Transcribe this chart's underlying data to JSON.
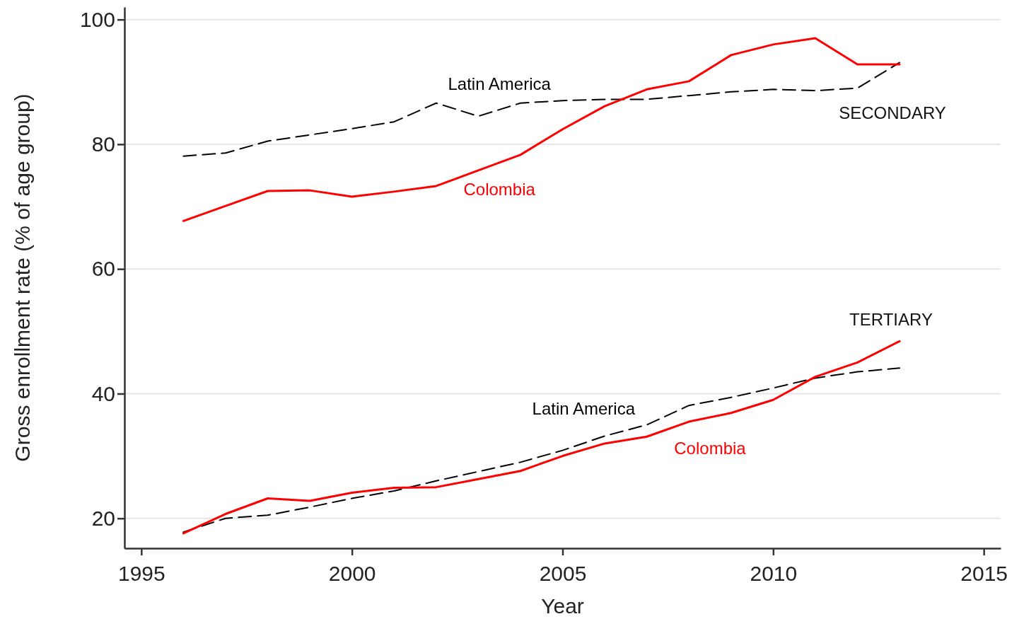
{
  "chart_data": {
    "type": "line",
    "xlabel": "Year",
    "ylabel": "Gross enrollment rate (% of age group)",
    "x": [
      1996,
      1997,
      1998,
      1999,
      2000,
      2001,
      2002,
      2003,
      2004,
      2005,
      2006,
      2007,
      2008,
      2009,
      2010,
      2011,
      2012,
      2013
    ],
    "xlim": [
      1994.6,
      2015.4
    ],
    "xticks": [
      1995,
      2000,
      2005,
      2010,
      2015
    ],
    "ylim": [
      15.2,
      102
    ],
    "yticks": [
      20,
      40,
      60,
      80,
      100
    ],
    "grid": "y",
    "marker": "none",
    "series": [
      {
        "name": "Latin America",
        "color": "#000000",
        "line_style": "dashed",
        "values": [
          78.1,
          78.6,
          80.5,
          81.5,
          82.5,
          83.6,
          86.6,
          84.5,
          86.6,
          87.0,
          87.2,
          87.2,
          87.8,
          88.4,
          88.8,
          88.6,
          89.0,
          93.1
        ]
      },
      {
        "name": "Colombia",
        "color": "#ff0000",
        "line_style": "solid",
        "values": [
          67.7,
          70.1,
          72.5,
          72.6,
          71.6,
          72.4,
          73.3,
          75.8,
          78.3,
          82.4,
          86.1,
          88.8,
          90.1,
          94.3,
          96.0,
          97.0,
          92.8,
          92.8
        ]
      },
      {
        "name": "Latin America",
        "color": "#000000",
        "line_style": "dashed",
        "values": [
          17.8,
          20.0,
          20.5,
          21.8,
          23.2,
          24.4,
          26.0,
          27.5,
          29.0,
          30.9,
          33.2,
          35.0,
          38.1,
          39.4,
          40.9,
          42.5,
          43.5,
          44.1
        ]
      },
      {
        "name": "Colombia",
        "color": "#ff0000",
        "line_style": "solid",
        "values": [
          17.6,
          20.7,
          23.2,
          22.8,
          24.1,
          24.9,
          25.0,
          26.3,
          27.6,
          30.0,
          32.0,
          33.1,
          35.5,
          36.9,
          39.0,
          42.7,
          45.0,
          48.4
        ]
      }
    ],
    "annotations": [
      "SECONDARY",
      "TERTIARY"
    ]
  }
}
